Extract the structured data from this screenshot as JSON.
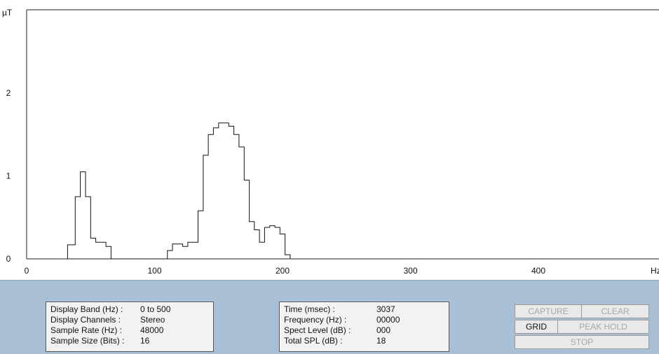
{
  "chart_data": {
    "type": "line",
    "title": "",
    "ylabel": "µT",
    "xlabel": "Hz",
    "xlim": [
      0,
      500
    ],
    "ylim": [
      0,
      3
    ],
    "x_ticks": [
      0,
      100,
      200,
      300,
      400
    ],
    "y_ticks": [
      0,
      1,
      2
    ],
    "grid": false,
    "series": [
      {
        "values_xy": [
          [
            30,
            0
          ],
          [
            32,
            0.17
          ],
          [
            38,
            0.75
          ],
          [
            42,
            1.05
          ],
          [
            46,
            0.75
          ],
          [
            50,
            0.25
          ],
          [
            54,
            0.2
          ],
          [
            58,
            0.2
          ],
          [
            62,
            0.15
          ],
          [
            66,
            0
          ],
          [
            107,
            0
          ],
          [
            110,
            0.1
          ],
          [
            114,
            0.18
          ],
          [
            118,
            0.18
          ],
          [
            122,
            0.15
          ],
          [
            126,
            0.2
          ],
          [
            130,
            0.2
          ],
          [
            134,
            0.58
          ],
          [
            138,
            1.25
          ],
          [
            142,
            1.5
          ],
          [
            146,
            1.58
          ],
          [
            150,
            1.64
          ],
          [
            154,
            1.64
          ],
          [
            158,
            1.6
          ],
          [
            162,
            1.5
          ],
          [
            166,
            1.35
          ],
          [
            170,
            0.95
          ],
          [
            174,
            0.45
          ],
          [
            178,
            0.35
          ],
          [
            182,
            0.2
          ],
          [
            186,
            0.38
          ],
          [
            190,
            0.4
          ],
          [
            194,
            0.38
          ],
          [
            198,
            0.3
          ],
          [
            202,
            0.05
          ],
          [
            206,
            0
          ]
        ]
      }
    ]
  },
  "info_left": {
    "rows": [
      {
        "label": "Display Band (Hz) :",
        "value": "0 to 500"
      },
      {
        "label": "Display Channels :",
        "value": "Stereo"
      },
      {
        "label": "Sample Rate (Hz) :",
        "value": "48000"
      },
      {
        "label": "Sample Size (Bits) :",
        "value": "16"
      }
    ]
  },
  "info_right": {
    "rows": [
      {
        "label": "Time (msec) :",
        "value": "3037"
      },
      {
        "label": "Frequency (Hz) :",
        "value": "00000"
      },
      {
        "label": "Spect Level (dB) :",
        "value": "000"
      },
      {
        "label": "Total SPL (dB) :",
        "value": "18"
      }
    ]
  },
  "controls": {
    "capture": "CAPTURE",
    "clear": "CLEAR",
    "grid": "GRID",
    "peak_hold": "PEAK HOLD",
    "stop": "STOP"
  }
}
